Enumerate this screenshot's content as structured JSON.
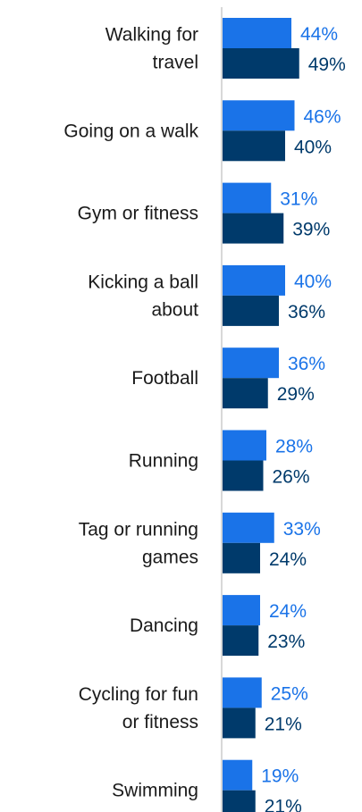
{
  "chart_data": {
    "type": "bar",
    "orientation": "horizontal",
    "categories": [
      [
        "Walking for",
        "travel"
      ],
      [
        "Going on a walk"
      ],
      [
        "Gym or fitness"
      ],
      [
        "Kicking a ball",
        "about"
      ],
      [
        "Football"
      ],
      [
        "Running"
      ],
      [
        "Tag or running",
        "games"
      ],
      [
        "Dancing"
      ],
      [
        "Cycling for fun",
        "or fitness"
      ],
      [
        "Swimming"
      ]
    ],
    "series": [
      {
        "values": [
          44,
          46,
          31,
          40,
          36,
          28,
          33,
          24,
          25,
          19
        ],
        "labels": [
          "44%",
          "46%",
          "31%",
          "40%",
          "36%",
          "28%",
          "33%",
          "24%",
          "25%",
          "19%"
        ],
        "color": "#1a73e8",
        "label_color": "#1a73e8"
      },
      {
        "values": [
          49,
          40,
          39,
          36,
          29,
          26,
          24,
          23,
          21,
          21
        ],
        "labels": [
          "49%",
          "40%",
          "39%",
          "36%",
          "29%",
          "26%",
          "24%",
          "23%",
          "21%",
          "21%"
        ],
        "color": "#003a6b",
        "label_color": "#003a6b"
      }
    ],
    "xlim": [
      0,
      100
    ],
    "grid": false,
    "axis_line_color": "#cccccc"
  }
}
